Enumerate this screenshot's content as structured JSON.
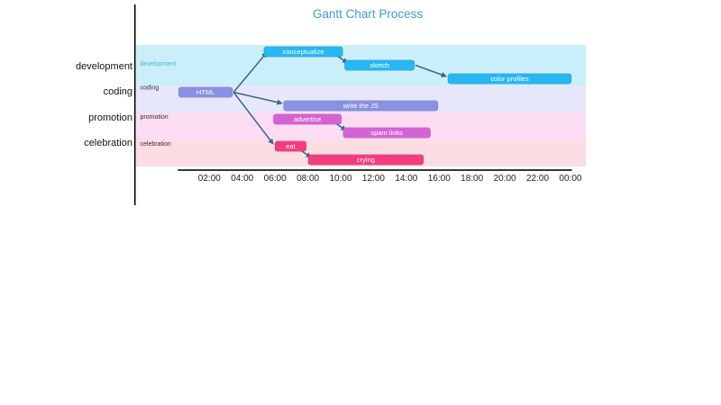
{
  "title": {
    "text": "Gantt Chart Process",
    "color": "#3f9bd6"
  },
  "chart_data": {
    "type": "gantt",
    "title": "Gantt Chart Process",
    "x_axis": {
      "tick_labels": [
        "02:00",
        "04:00",
        "06:00",
        "08:00",
        "10:00",
        "12:00",
        "14:00",
        "16:00",
        "18:00",
        "20:00",
        "22:00",
        "00:00"
      ],
      "tick_hours": [
        2,
        4,
        6,
        8,
        10,
        12,
        14,
        16,
        18,
        20,
        22,
        24
      ],
      "range_hours": [
        0,
        24.1
      ],
      "grid": false
    },
    "y_axis": {
      "categories": [
        "development",
        "coding",
        "promotion",
        "celebration"
      ]
    },
    "sections": [
      {
        "name": "development",
        "bg_color": "#cbeefb",
        "bar_color": "#28b7f0",
        "label_color": "#49b8e6",
        "tasks": [
          {
            "id": "conceptualize",
            "label": "conceptualize",
            "start": "05:20",
            "end": "10:10",
            "start_h": 5.32,
            "end_h": 10.13
          },
          {
            "id": "sketch",
            "label": "sketch",
            "start": "10:15",
            "end": "14:30",
            "start_h": 10.24,
            "end_h": 14.5
          },
          {
            "id": "color-profiles",
            "label": "color profiles",
            "start": "16:30",
            "end": "00:00",
            "start_h": 16.53,
            "end_h": 24.06
          }
        ]
      },
      {
        "name": "coding",
        "bg_color": "#e6e7fa",
        "bar_color": "#8a91e2",
        "label_color": "#333333",
        "tasks": [
          {
            "id": "html",
            "label": "HTML",
            "start": "00:10",
            "end": "03:25",
            "start_h": 0.12,
            "end_h": 3.42
          },
          {
            "id": "write-the-js",
            "label": "write the JS",
            "start": "06:30",
            "end": "15:55",
            "start_h": 6.52,
            "end_h": 15.93
          }
        ]
      },
      {
        "name": "promotion",
        "bg_color": "#fbdcf2",
        "bar_color": "#d464d4",
        "label_color": "#333333",
        "tasks": [
          {
            "id": "advertise",
            "label": "advertise",
            "start": "05:55",
            "end": "10:00",
            "start_h": 5.9,
            "end_h": 10.05
          },
          {
            "id": "spam-links",
            "label": "spam links",
            "start": "10:10",
            "end": "15:30",
            "start_h": 10.15,
            "end_h": 15.47
          }
        ]
      },
      {
        "name": "celebration",
        "bg_color": "#fcdde3",
        "bar_color": "#f43d7f",
        "label_color": "#333333",
        "tasks": [
          {
            "id": "eat",
            "label": "eat",
            "start": "06:00",
            "end": "07:55",
            "start_h": 5.99,
            "end_h": 7.91
          },
          {
            "id": "crying",
            "label": "crying",
            "start": "08:00",
            "end": "15:00",
            "start_h": 8.02,
            "end_h": 15.05
          }
        ]
      }
    ],
    "dependencies": [
      {
        "from": "html",
        "to": "conceptualize"
      },
      {
        "from": "conceptualize",
        "to": "sketch"
      },
      {
        "from": "sketch",
        "to": "color-profiles"
      },
      {
        "from": "html",
        "to": "write-the-js"
      },
      {
        "from": "html",
        "to": "eat"
      },
      {
        "from": "advertise",
        "to": "spam-links"
      },
      {
        "from": "eat",
        "to": "crying"
      }
    ],
    "colors": {
      "arrow": "#3a6690",
      "axis_line": "#1a1a1a",
      "tick_label": "#222222",
      "category_label": "#131313",
      "bar_text": "#ffffff"
    }
  }
}
